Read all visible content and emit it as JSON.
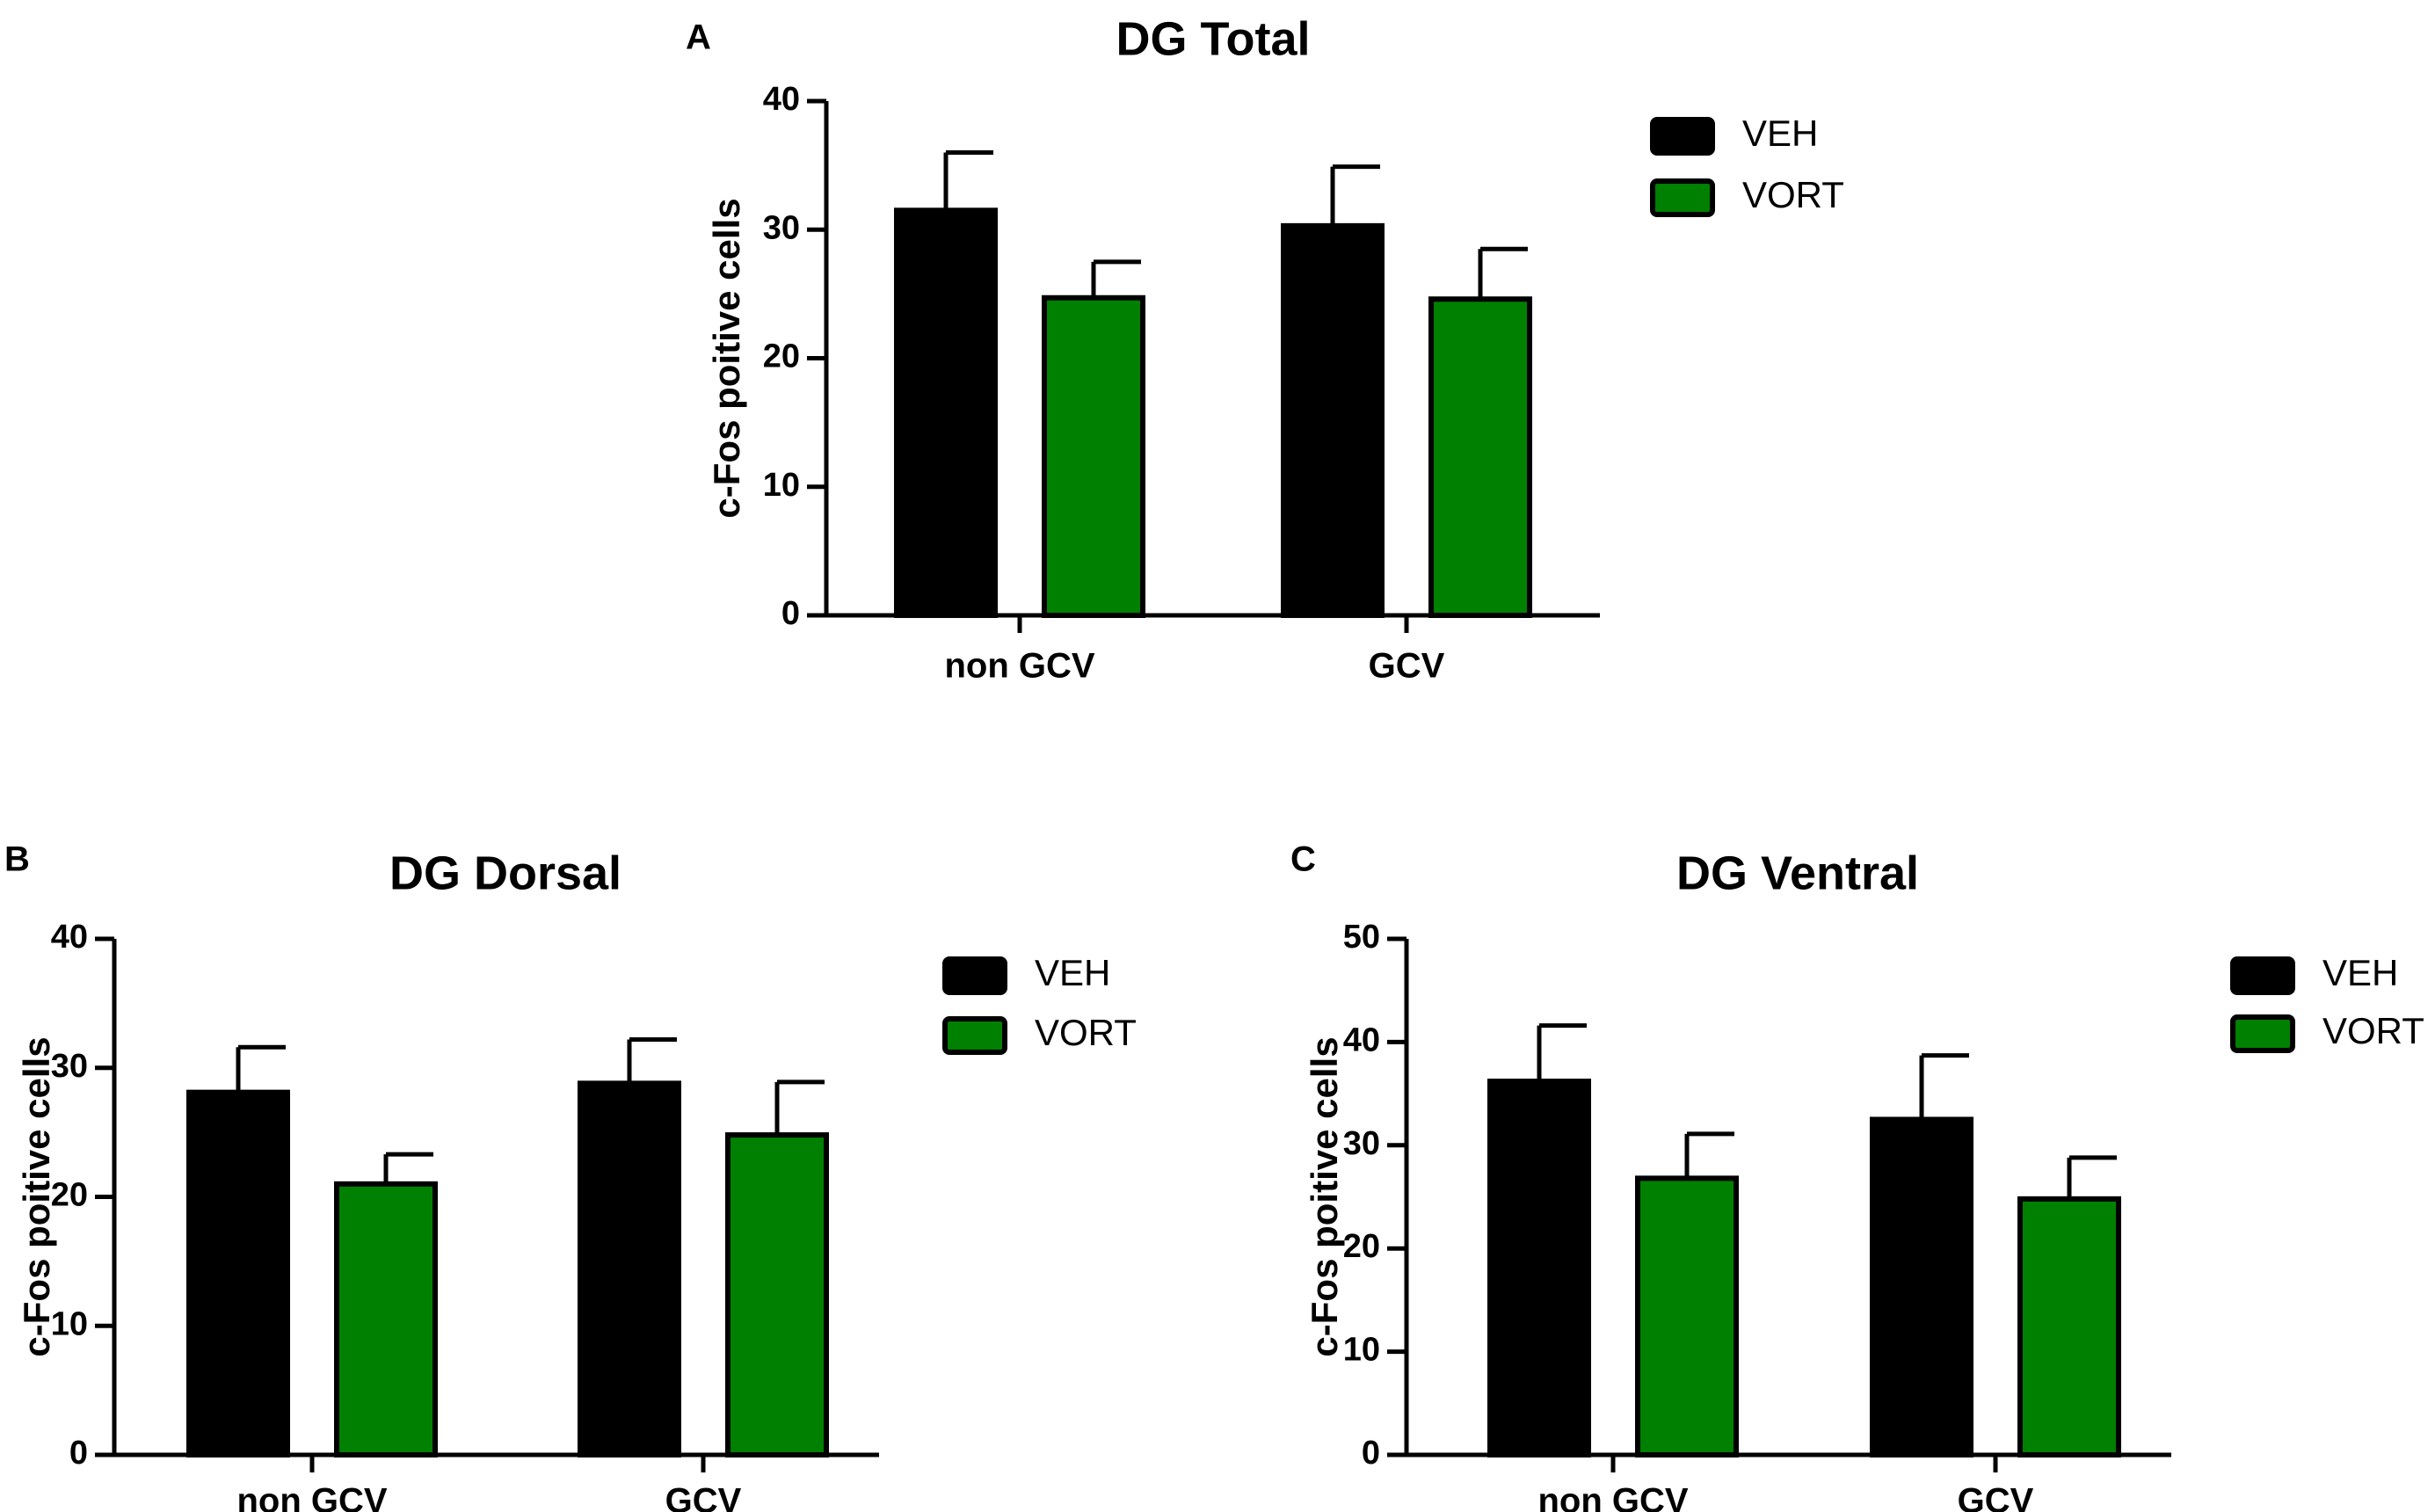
{
  "chart_data": [
    {
      "panel": "A",
      "type": "bar",
      "title": "DG Total",
      "xlabel": "",
      "ylabel": "c-Fos poitive cells",
      "ylim": [
        0,
        40
      ],
      "yticks": [
        0,
        10,
        20,
        30,
        40
      ],
      "categories": [
        "non GCV",
        "GCV"
      ],
      "series": [
        {
          "name": "VEH",
          "color": "#000000",
          "values": [
            31.5,
            30.3
          ],
          "errors": [
            4.5,
            4.6
          ]
        },
        {
          "name": "VORT",
          "color": "#008000",
          "values": [
            24.7,
            24.6
          ],
          "errors": [
            2.8,
            3.9
          ]
        }
      ],
      "legend": "top-right"
    },
    {
      "panel": "B",
      "type": "bar",
      "title": "DG Dorsal",
      "xlabel": "",
      "ylabel": "c-Fos poitive cells",
      "ylim": [
        0,
        40
      ],
      "yticks": [
        0,
        10,
        20,
        30,
        40
      ],
      "categories": [
        "non GCV",
        "GCV"
      ],
      "series": [
        {
          "name": "VEH",
          "color": "#000000",
          "values": [
            28.1,
            28.8
          ],
          "errors": [
            3.5,
            3.4
          ]
        },
        {
          "name": "VORT",
          "color": "#008000",
          "values": [
            21.0,
            24.8
          ],
          "errors": [
            2.3,
            4.1
          ]
        }
      ],
      "legend": "top-right"
    },
    {
      "panel": "C",
      "type": "bar",
      "title": "DG Ventral",
      "xlabel": "",
      "ylabel": "c-Fos poitive cells",
      "ylim": [
        0,
        50
      ],
      "yticks": [
        0,
        10,
        20,
        30,
        40,
        50
      ],
      "categories": [
        "non GCV",
        "GCV"
      ],
      "series": [
        {
          "name": "VEH",
          "color": "#000000",
          "values": [
            36.2,
            32.5
          ],
          "errors": [
            5.4,
            6.2
          ]
        },
        {
          "name": "VORT",
          "color": "#008000",
          "values": [
            26.8,
            24.8
          ],
          "errors": [
            4.3,
            4.0
          ]
        }
      ],
      "legend": "top-right"
    }
  ]
}
